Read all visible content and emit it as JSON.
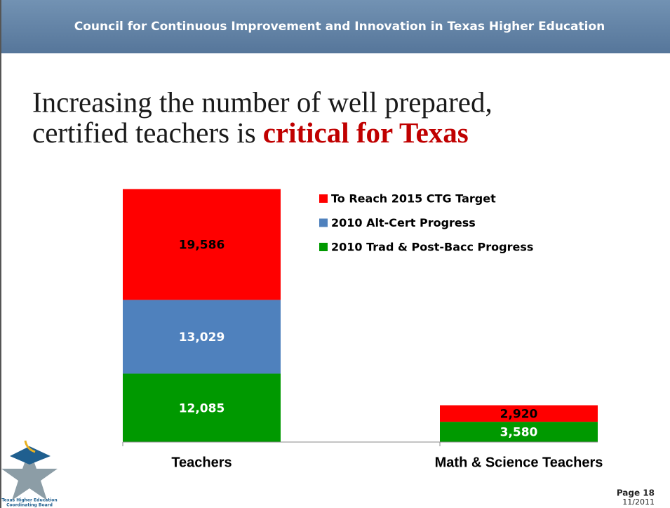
{
  "header": "Council for Continuous Improvement and Innovation in Texas Higher Education",
  "title": [
    "Increasing the number of well prepared,",
    "certified teachers is"
  ],
  "title_emphasis": "critical for Texas",
  "chart_data": {
    "type": "stacked_bar",
    "categories": [
      "Teachers",
      "Math & Science Teachers"
    ],
    "series": [
      {
        "name": "2010 Trad & Post-Bacc Progress",
        "color": "#009900",
        "label_color": "#ffffff",
        "values": [
          12085,
          3580
        ],
        "value_labels": [
          "12,085",
          "3,580"
        ]
      },
      {
        "name": "2010 Alt-Cert Progress",
        "color": "#4f81bd",
        "label_color": "#ffffff",
        "values": [
          13029,
          null
        ],
        "value_labels": [
          "13,029",
          null
        ]
      },
      {
        "name": "To Reach 2015 CTG Target",
        "color": "#ff0000",
        "label_color": "#000000",
        "values": [
          19586,
          2920
        ],
        "value_labels": [
          "19,586",
          "2,920"
        ]
      }
    ],
    "ylim": [
      0,
      45000
    ]
  },
  "logo_text": [
    "Texas Higher Education",
    "Coordinating Board"
  ],
  "footer": {
    "page": "Page 18",
    "date": "11/2011"
  }
}
